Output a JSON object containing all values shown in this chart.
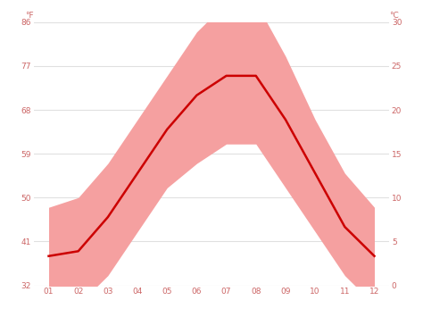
{
  "months": [
    1,
    2,
    3,
    4,
    5,
    6,
    7,
    8,
    9,
    10,
    11,
    12
  ],
  "month_labels": [
    "01",
    "02",
    "03",
    "04",
    "05",
    "06",
    "07",
    "08",
    "09",
    "10",
    "11",
    "12"
  ],
  "avg_temp_f": [
    38,
    39,
    46,
    55,
    64,
    71,
    75,
    75,
    66,
    55,
    44,
    38
  ],
  "temp_max_f": [
    48,
    50,
    57,
    66,
    75,
    84,
    90,
    90,
    79,
    66,
    55,
    48
  ],
  "temp_min_f": [
    28,
    28,
    34,
    43,
    52,
    57,
    61,
    61,
    52,
    43,
    34,
    28
  ],
  "ylim_min_f": 32,
  "ylim_max_f": 86,
  "yticks_f": [
    32,
    41,
    50,
    59,
    68,
    77,
    86
  ],
  "yticks_c": [
    0,
    5,
    10,
    15,
    20,
    25,
    30
  ],
  "yticks_f_labels": [
    "32",
    "41",
    "50",
    "59",
    "68",
    "77",
    "86"
  ],
  "yticks_c_labels": [
    "0",
    "5",
    "10",
    "15",
    "20",
    "25",
    "30"
  ],
  "line_color": "#cc0000",
  "band_color": "#f5a0a0",
  "bg_color": "#ffffff",
  "grid_color": "#e0e0e0",
  "axis_label_color": "#cc6666",
  "tick_color": "#cc6666"
}
